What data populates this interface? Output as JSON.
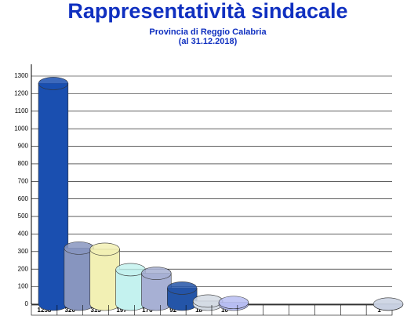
{
  "chart_data": {
    "type": "bar",
    "title": "Rappresentatività sindacale",
    "subtitle": [
      "Provincia di Reggio Calabria",
      "(al 31.12.2018)"
    ],
    "categories": [
      null,
      null,
      null,
      null,
      null,
      null,
      null,
      null,
      null,
      null,
      null,
      null,
      null,
      null
    ],
    "values": [
      1258,
      320,
      313,
      197,
      176,
      92,
      18,
      10,
      null,
      null,
      null,
      null,
      null,
      1
    ],
    "colors": [
      "#1a4fb0",
      "#8795bf",
      "#f2f0b4",
      "#c4f2ef",
      "#a7b0d4",
      "#2455a8",
      "#d4dbe4",
      "#b7bdf2",
      null,
      null,
      null,
      null,
      null,
      "#c8d0e0"
    ],
    "ylim": [
      0,
      1300
    ],
    "yticks": [
      0,
      100,
      200,
      300,
      400,
      500,
      600,
      700,
      800,
      900,
      1000,
      1100,
      1200,
      1300
    ],
    "grid": true
  }
}
